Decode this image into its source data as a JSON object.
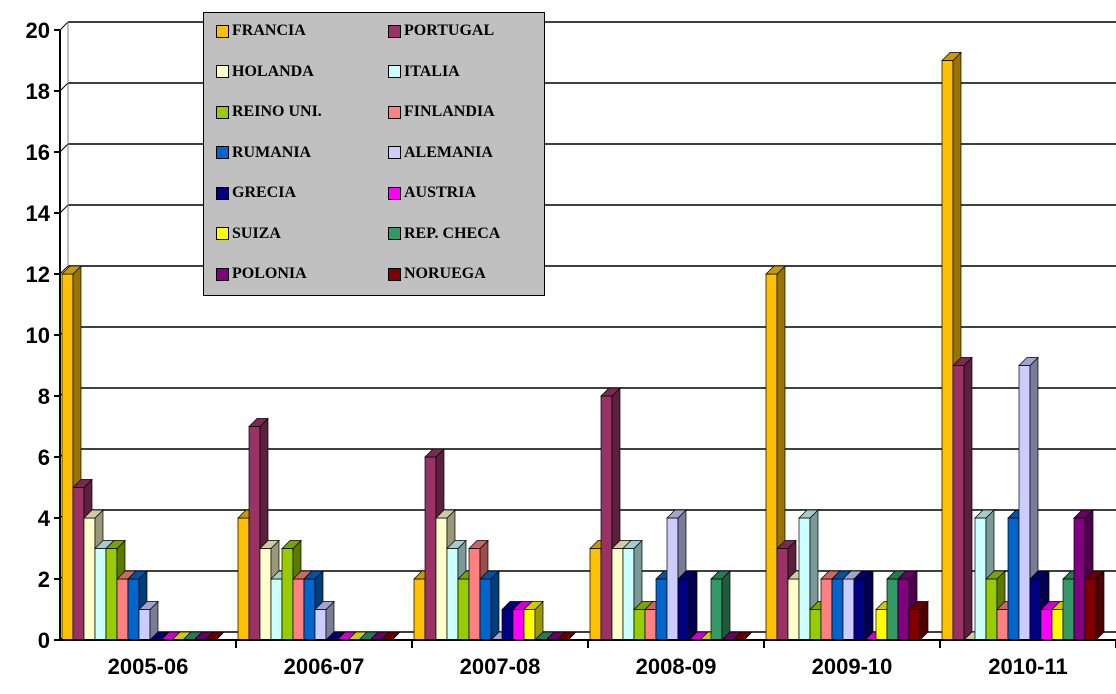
{
  "chart_data": {
    "type": "bar",
    "three_d": true,
    "categories": [
      "2005-06",
      "2006-07",
      "2007-08",
      "2008-09",
      "2009-10",
      "2010-11"
    ],
    "ylim": [
      0,
      20
    ],
    "yticks": [
      0,
      2,
      4,
      6,
      8,
      10,
      12,
      14,
      16,
      18,
      20
    ],
    "ytick_labels": [
      "0",
      "2",
      "4",
      "6",
      "8",
      "10",
      "12",
      "14",
      "16",
      "18",
      "20"
    ],
    "grid": true,
    "legend_position": "top-left inside plot, two columns",
    "series": [
      {
        "name": "FRANCIA",
        "color": "#ffc000",
        "values": [
          12,
          4,
          2,
          3,
          12,
          19
        ]
      },
      {
        "name": "PORTUGAL",
        "color": "#993366",
        "values": [
          5,
          7,
          6,
          8,
          3,
          9
        ]
      },
      {
        "name": "HOLANDA",
        "color": "#ffffcc",
        "values": [
          4,
          3,
          4,
          3,
          2,
          0
        ]
      },
      {
        "name": "ITALIA",
        "color": "#ccffff",
        "values": [
          3,
          2,
          3,
          3,
          4,
          4
        ]
      },
      {
        "name": "REINO UNI.",
        "color": "#99cc00",
        "values": [
          3,
          3,
          2,
          1,
          1,
          2
        ]
      },
      {
        "name": "FINLANDIA",
        "color": "#ff8080",
        "values": [
          2,
          2,
          3,
          1,
          2,
          1
        ]
      },
      {
        "name": "RUMANIA",
        "color": "#0066cc",
        "values": [
          2,
          2,
          2,
          2,
          2,
          4
        ]
      },
      {
        "name": "ALEMANIA",
        "color": "#ccccff",
        "values": [
          1,
          1,
          0,
          4,
          2,
          9
        ]
      },
      {
        "name": "GRECIA",
        "color": "#000080",
        "values": [
          0,
          0,
          1,
          2,
          2,
          2
        ]
      },
      {
        "name": "AUSTRIA",
        "color": "#ff00ff",
        "values": [
          0,
          0,
          1,
          0,
          0,
          1
        ]
      },
      {
        "name": "SUIZA",
        "color": "#ffff00",
        "values": [
          0,
          0,
          1,
          0,
          1,
          1
        ]
      },
      {
        "name": "REP. CHECA",
        "color": "#339966",
        "values": [
          0,
          0,
          0,
          2,
          2,
          2
        ]
      },
      {
        "name": "POLONIA",
        "color": "#800080",
        "values": [
          0,
          0,
          0,
          0,
          2,
          4
        ]
      },
      {
        "name": "NORUEGA",
        "color": "#800000",
        "values": [
          0,
          0,
          0,
          0,
          1,
          2
        ]
      }
    ]
  }
}
